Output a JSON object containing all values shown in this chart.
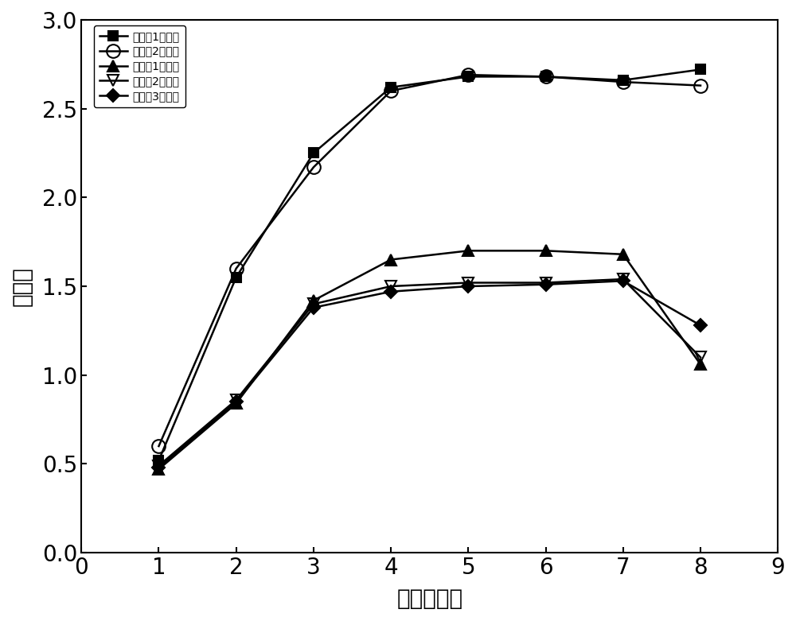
{
  "series": [
    {
      "label": "实施例1培养基",
      "x": [
        1,
        2,
        3,
        4,
        5,
        6,
        7,
        8
      ],
      "y": [
        0.52,
        1.55,
        2.25,
        2.62,
        2.68,
        2.68,
        2.66,
        2.72
      ],
      "marker": "s",
      "fillstyle": "full",
      "color": "#000000",
      "markersize": 9
    },
    {
      "label": "实施例2培养基",
      "x": [
        1,
        2,
        3,
        4,
        5,
        6,
        7,
        8
      ],
      "y": [
        0.6,
        1.6,
        2.17,
        2.6,
        2.69,
        2.68,
        2.65,
        2.63
      ],
      "marker": "o",
      "fillstyle": "none",
      "color": "#000000",
      "markersize": 12
    },
    {
      "label": "对比例1培养基",
      "x": [
        1,
        2,
        3,
        4,
        5,
        6,
        7,
        8
      ],
      "y": [
        0.47,
        0.84,
        1.42,
        1.65,
        1.7,
        1.7,
        1.68,
        1.06
      ],
      "marker": "^",
      "fillstyle": "full",
      "color": "#000000",
      "markersize": 10
    },
    {
      "label": "对比例2培养基",
      "x": [
        1,
        2,
        3,
        4,
        5,
        6,
        7,
        8
      ],
      "y": [
        0.49,
        0.86,
        1.4,
        1.5,
        1.52,
        1.52,
        1.54,
        1.1
      ],
      "marker": "v",
      "fillstyle": "none",
      "color": "#000000",
      "markersize": 10
    },
    {
      "label": "对比例3培养基",
      "x": [
        1,
        2,
        3,
        4,
        5,
        6,
        7,
        8
      ],
      "y": [
        0.48,
        0.85,
        1.38,
        1.47,
        1.5,
        1.51,
        1.53,
        1.28
      ],
      "marker": "D",
      "fillstyle": "full",
      "color": "#000000",
      "markersize": 8
    }
  ],
  "xlabel": "时间（天）",
  "ylabel": "吸光值",
  "xlim": [
    0,
    9
  ],
  "ylim": [
    0.0,
    3.0
  ],
  "xticks": [
    0,
    1,
    2,
    3,
    4,
    5,
    6,
    7,
    8,
    9
  ],
  "yticks": [
    0.0,
    0.5,
    1.0,
    1.5,
    2.0,
    2.5,
    3.0
  ],
  "linewidth": 1.8,
  "background_color": "#ffffff",
  "font_size_ticks": 20,
  "font_size_labels": 20,
  "font_size_legend": 15
}
